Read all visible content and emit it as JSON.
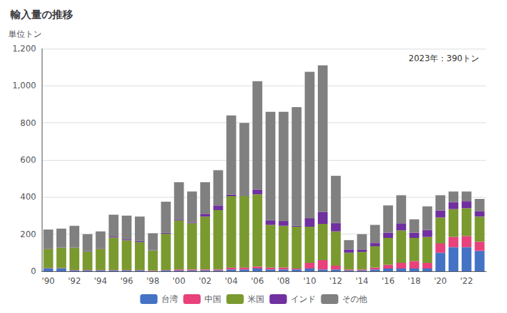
{
  "chart_data": {
    "type": "bar",
    "title": "輸入量の推移",
    "ylabel": "単位トン",
    "annotation": "2023年：390トン",
    "stacked": true,
    "grid": true,
    "legend": "bottom",
    "categories": [
      "'90",
      null,
      "'92",
      null,
      "'94",
      null,
      "'96",
      null,
      "'98",
      null,
      "'00",
      null,
      "'02",
      null,
      "'04",
      null,
      "'06",
      null,
      "'08",
      null,
      "'10",
      null,
      "'12",
      null,
      "'14",
      null,
      "'16",
      null,
      "'18",
      null,
      "'20",
      null,
      "'22",
      null
    ],
    "series": [
      {
        "name": "台湾",
        "color": "#4472c4",
        "values": [
          15,
          15,
          5,
          5,
          5,
          5,
          5,
          5,
          2,
          5,
          5,
          5,
          5,
          5,
          10,
          10,
          15,
          10,
          10,
          10,
          15,
          10,
          10,
          5,
          5,
          10,
          15,
          15,
          15,
          15,
          100,
          130,
          130,
          110
        ]
      },
      {
        "name": "中国",
        "color": "#e8417c",
        "values": [
          2,
          2,
          2,
          2,
          2,
          2,
          2,
          2,
          2,
          2,
          5,
          5,
          5,
          5,
          10,
          10,
          10,
          10,
          10,
          5,
          30,
          50,
          20,
          5,
          5,
          10,
          20,
          30,
          40,
          30,
          50,
          55,
          60,
          50
        ]
      },
      {
        "name": "米国",
        "color": "#7a9a30",
        "values": [
          105,
          110,
          120,
          100,
          115,
          175,
          160,
          150,
          108,
          195,
          265,
          250,
          285,
          320,
          385,
          385,
          390,
          230,
          225,
          225,
          195,
          195,
          185,
          90,
          95,
          115,
          145,
          175,
          125,
          140,
          140,
          150,
          150,
          135
        ]
      },
      {
        "name": "インド",
        "color": "#7030a0",
        "values": [
          2,
          2,
          2,
          2,
          2,
          5,
          5,
          5,
          2,
          5,
          5,
          5,
          15,
          25,
          8,
          0,
          25,
          25,
          25,
          5,
          45,
          65,
          45,
          18,
          12,
          18,
          28,
          38,
          28,
          38,
          38,
          38,
          38,
          28
        ]
      },
      {
        "name": "その他",
        "color": "#808080",
        "values": [
          101,
          101,
          116,
          91,
          91,
          118,
          128,
          133,
          91,
          168,
          200,
          165,
          170,
          190,
          427,
          395,
          585,
          585,
          590,
          640,
          790,
          790,
          255,
          50,
          83,
          97,
          147,
          152,
          72,
          127,
          82,
          57,
          52,
          67
        ]
      }
    ],
    "ylim": [
      0,
      1200
    ],
    "yticks": [
      0,
      200,
      400,
      600,
      800,
      {
        "value": 1000,
        "label": "1,000"
      },
      {
        "value": 1200,
        "label": "1,200"
      }
    ]
  }
}
